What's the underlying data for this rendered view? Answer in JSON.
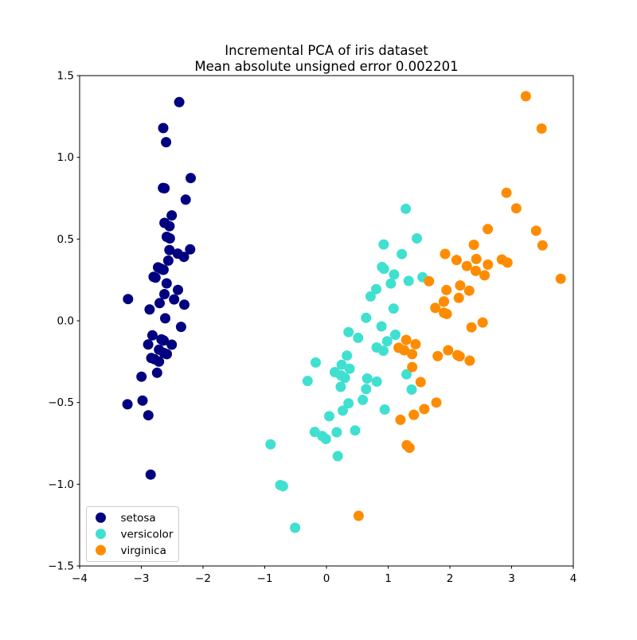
{
  "figure": {
    "background": "#ffffff"
  },
  "chart_data": {
    "type": "scatter",
    "title": "Incremental PCA of iris dataset",
    "subtitle": "Mean absolute unsigned error 0.002201",
    "xlabel": "",
    "ylabel": "",
    "xlim": [
      -4,
      4
    ],
    "ylim": [
      -1.5,
      1.5
    ],
    "xticks": [
      -4,
      -3,
      -2,
      -1,
      0,
      1,
      2,
      3,
      4
    ],
    "xtick_labels": [
      "−4",
      "−3",
      "−2",
      "−1",
      "0",
      "1",
      "2",
      "3",
      "4"
    ],
    "yticks": [
      -1.5,
      -1.0,
      -0.5,
      0.0,
      0.5,
      1.0,
      1.5
    ],
    "ytick_labels": [
      "−1.5",
      "−1.0",
      "−0.5",
      "0.0",
      "0.5",
      "1.0",
      "1.5"
    ],
    "grid": false,
    "marker": {
      "shape": "circle",
      "radius_px": 6.5
    },
    "legend": {
      "position": "lower-left",
      "entries": [
        "setosa",
        "versicolor",
        "virginica"
      ],
      "border_color": "#cccccc",
      "background": "#ffffff"
    },
    "series": [
      {
        "name": "setosa",
        "color": "#000080",
        "points": [
          [
            -2.684,
            0.319
          ],
          [
            -2.714,
            -0.177
          ],
          [
            -2.889,
            -0.145
          ],
          [
            -2.745,
            -0.318
          ],
          [
            -2.729,
            0.327
          ],
          [
            -2.281,
            0.741
          ],
          [
            -2.821,
            -0.089
          ],
          [
            -2.626,
            0.163
          ],
          [
            -2.886,
            -0.578
          ],
          [
            -2.673,
            -0.114
          ],
          [
            -2.507,
            0.645
          ],
          [
            -2.613,
            0.015
          ],
          [
            -2.786,
            -0.235
          ],
          [
            -3.224,
            -0.511
          ],
          [
            -2.645,
            1.179
          ],
          [
            -2.386,
            1.338
          ],
          [
            -2.624,
            0.811
          ],
          [
            -2.648,
            0.312
          ],
          [
            -2.2,
            0.873
          ],
          [
            -2.588,
            0.514
          ],
          [
            -2.31,
            0.391
          ],
          [
            -2.544,
            0.433
          ],
          [
            -3.216,
            0.133
          ],
          [
            -2.303,
            0.099
          ],
          [
            -2.356,
            -0.037
          ],
          [
            -2.507,
            -0.146
          ],
          [
            -2.469,
            0.131
          ],
          [
            -2.562,
            0.368
          ],
          [
            -2.64,
            0.312
          ],
          [
            -2.632,
            -0.197
          ],
          [
            -2.587,
            -0.204
          ],
          [
            -2.41,
            0.411
          ],
          [
            -2.649,
            0.813
          ],
          [
            -2.599,
            1.093
          ],
          [
            -2.637,
            -0.121
          ],
          [
            -2.866,
            0.069
          ],
          [
            -2.625,
            0.599
          ],
          [
            -2.801,
            0.269
          ],
          [
            -2.981,
            -0.488
          ],
          [
            -2.59,
            0.229
          ],
          [
            -2.77,
            0.264
          ],
          [
            -2.849,
            -0.941
          ],
          [
            -2.997,
            -0.342
          ],
          [
            -2.406,
            0.189
          ],
          [
            -2.209,
            0.437
          ],
          [
            -2.714,
            -0.25
          ],
          [
            -2.538,
            0.504
          ],
          [
            -2.839,
            -0.228
          ],
          [
            -2.543,
            0.579
          ],
          [
            -2.703,
            0.108
          ]
        ]
      },
      {
        "name": "versicolor",
        "color": "#40E0D0",
        "points": [
          [
            1.285,
            0.685
          ],
          [
            0.932,
            0.318
          ],
          [
            1.464,
            0.504
          ],
          [
            0.183,
            -0.828
          ],
          [
            1.088,
            0.075
          ],
          [
            0.642,
            -0.418
          ],
          [
            1.095,
            0.283
          ],
          [
            -0.749,
            -1.005
          ],
          [
            1.044,
            0.228
          ],
          [
            -0.009,
            -0.723
          ],
          [
            -0.508,
            -1.266
          ],
          [
            0.512,
            -0.104
          ],
          [
            0.265,
            -0.55
          ],
          [
            0.985,
            -0.125
          ],
          [
            -0.174,
            -0.255
          ],
          [
            0.928,
            0.467
          ],
          [
            0.66,
            -0.353
          ],
          [
            0.236,
            -0.334
          ],
          [
            0.945,
            -0.543
          ],
          [
            0.045,
            -0.584
          ],
          [
            1.116,
            -0.085
          ],
          [
            0.358,
            -0.069
          ],
          [
            1.298,
            -0.328
          ],
          [
            0.922,
            -0.183
          ],
          [
            0.715,
            0.149
          ],
          [
            0.9,
            0.329
          ],
          [
            1.332,
            0.244
          ],
          [
            1.558,
            0.267
          ],
          [
            0.813,
            -0.163
          ],
          [
            -0.306,
            -0.368
          ],
          [
            -0.068,
            -0.705
          ],
          [
            -0.19,
            -0.68
          ],
          [
            0.136,
            -0.314
          ],
          [
            1.38,
            -0.421
          ],
          [
            0.588,
            -0.484
          ],
          [
            0.807,
            0.194
          ],
          [
            1.221,
            0.408
          ],
          [
            0.815,
            -0.372
          ],
          [
            0.246,
            -0.269
          ],
          [
            0.166,
            -0.682
          ],
          [
            0.465,
            -0.671
          ],
          [
            0.891,
            -0.034
          ],
          [
            0.231,
            -0.404
          ],
          [
            -0.705,
            -1.012
          ],
          [
            0.357,
            -0.505
          ],
          [
            0.332,
            -0.213
          ],
          [
            0.376,
            -0.293
          ],
          [
            0.643,
            0.018
          ],
          [
            -0.906,
            -0.756
          ],
          [
            0.299,
            -0.349
          ]
        ]
      },
      {
        "name": "virginica",
        "color": "#FF8C00",
        "points": [
          [
            2.531,
            -0.01
          ],
          [
            1.415,
            -0.575
          ],
          [
            2.617,
            0.344
          ],
          [
            1.972,
            -0.18
          ],
          [
            2.35,
            -0.04
          ],
          [
            3.397,
            0.551
          ],
          [
            0.521,
            -1.193
          ],
          [
            2.933,
            0.356
          ],
          [
            2.321,
            -0.244
          ],
          [
            2.917,
            0.783
          ],
          [
            1.662,
            0.242
          ],
          [
            1.803,
            -0.216
          ],
          [
            2.166,
            0.216
          ],
          [
            1.346,
            -0.777
          ],
          [
            1.586,
            -0.54
          ],
          [
            1.904,
            0.119
          ],
          [
            1.95,
            0.042
          ],
          [
            3.487,
            1.176
          ],
          [
            3.796,
            0.257
          ],
          [
            1.301,
            -0.761
          ],
          [
            2.428,
            0.378
          ],
          [
            1.199,
            -0.606
          ],
          [
            3.5,
            0.461
          ],
          [
            1.389,
            -0.204
          ],
          [
            2.275,
            0.335
          ],
          [
            2.614,
            0.561
          ],
          [
            1.259,
            -0.18
          ],
          [
            1.291,
            -0.117
          ],
          [
            2.124,
            -0.21
          ],
          [
            2.388,
            0.465
          ],
          [
            2.842,
            0.375
          ],
          [
            3.231,
            1.374
          ],
          [
            2.159,
            -0.217
          ],
          [
            1.444,
            -0.143
          ],
          [
            1.781,
            -0.5
          ],
          [
            3.076,
            0.688
          ],
          [
            2.144,
            0.14
          ],
          [
            1.905,
            0.049
          ],
          [
            1.169,
            -0.165
          ],
          [
            2.108,
            0.372
          ],
          [
            2.314,
            0.184
          ],
          [
            1.922,
            0.409
          ],
          [
            1.415,
            -0.575
          ],
          [
            2.563,
            0.278
          ],
          [
            2.419,
            0.305
          ],
          [
            1.944,
            0.188
          ],
          [
            1.527,
            -0.375
          ],
          [
            1.764,
            0.079
          ],
          [
            1.901,
            0.117
          ],
          [
            1.39,
            -0.283
          ]
        ]
      }
    ]
  }
}
